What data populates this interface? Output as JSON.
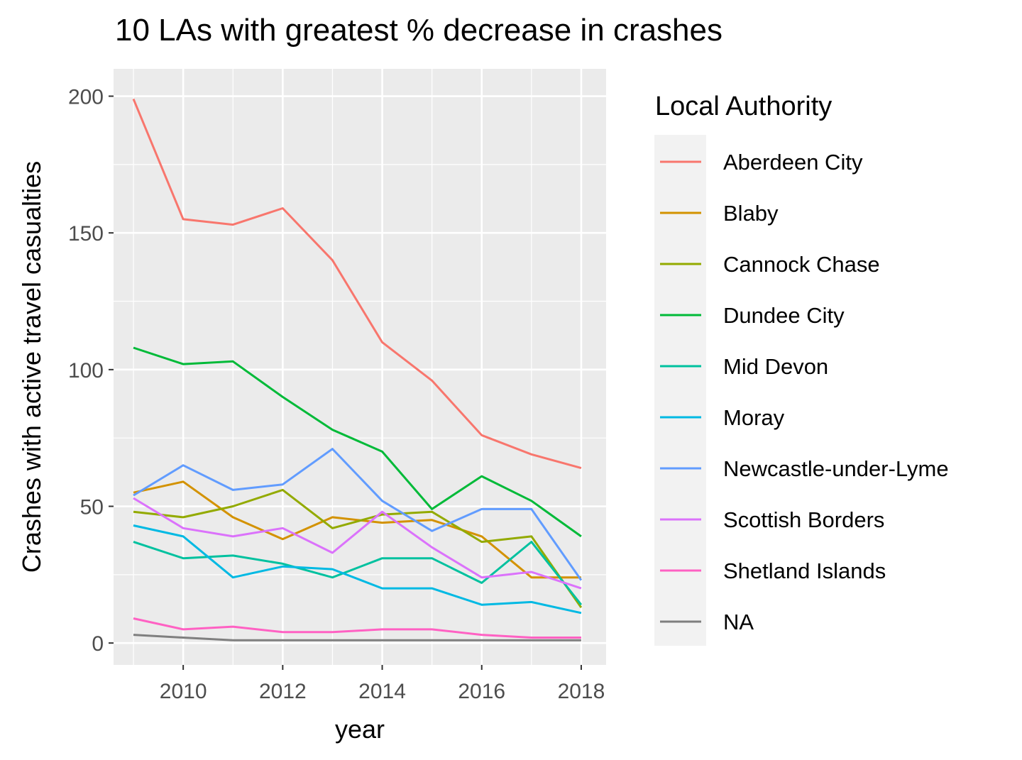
{
  "chart_data": {
    "type": "line",
    "title": "10 LAs with greatest % decrease in crashes",
    "xlabel": "year",
    "ylabel": "Crashes with active travel casualties",
    "x": [
      2009,
      2010,
      2011,
      2012,
      2013,
      2014,
      2015,
      2016,
      2017,
      2018
    ],
    "xlim": [
      2008.6,
      2018.5
    ],
    "ylim": [
      -8,
      210
    ],
    "xticks": [
      2010,
      2012,
      2014,
      2016,
      2018
    ],
    "yticks": [
      0,
      50,
      100,
      150,
      200
    ],
    "grid": true,
    "legend": {
      "title": "Local Authority",
      "position": "right"
    },
    "series": [
      {
        "name": "Aberdeen City",
        "color": "#F8766D",
        "values": [
          199,
          155,
          153,
          159,
          140,
          110,
          96,
          76,
          69,
          64
        ]
      },
      {
        "name": "Blaby",
        "color": "#D39200",
        "values": [
          55,
          59,
          46,
          38,
          46,
          44,
          45,
          39,
          24,
          24
        ]
      },
      {
        "name": "Cannock Chase",
        "color": "#93AA00",
        "values": [
          48,
          46,
          50,
          56,
          42,
          47,
          48,
          37,
          39,
          13
        ]
      },
      {
        "name": "Dundee City",
        "color": "#00BA38",
        "values": [
          108,
          102,
          103,
          90,
          78,
          70,
          49,
          61,
          52,
          39
        ]
      },
      {
        "name": "Mid Devon",
        "color": "#00C19F",
        "values": [
          37,
          31,
          32,
          29,
          24,
          31,
          31,
          22,
          37,
          14
        ]
      },
      {
        "name": "Moray",
        "color": "#00B9E3",
        "values": [
          43,
          39,
          24,
          28,
          27,
          20,
          20,
          14,
          15,
          11
        ]
      },
      {
        "name": "Newcastle-under-Lyme",
        "color": "#619CFF",
        "values": [
          54,
          65,
          56,
          58,
          71,
          52,
          41,
          49,
          49,
          23
        ]
      },
      {
        "name": "Scottish Borders",
        "color": "#DB72FB",
        "values": [
          53,
          42,
          39,
          42,
          33,
          48,
          35,
          24,
          26,
          20
        ]
      },
      {
        "name": "Shetland Islands",
        "color": "#FF61C3",
        "values": [
          9,
          5,
          6,
          4,
          4,
          5,
          5,
          3,
          2,
          2
        ]
      },
      {
        "name": "NA",
        "color": "#7F7F7F",
        "values": [
          3,
          2,
          1,
          1,
          1,
          1,
          1,
          1,
          1,
          1
        ]
      }
    ]
  }
}
